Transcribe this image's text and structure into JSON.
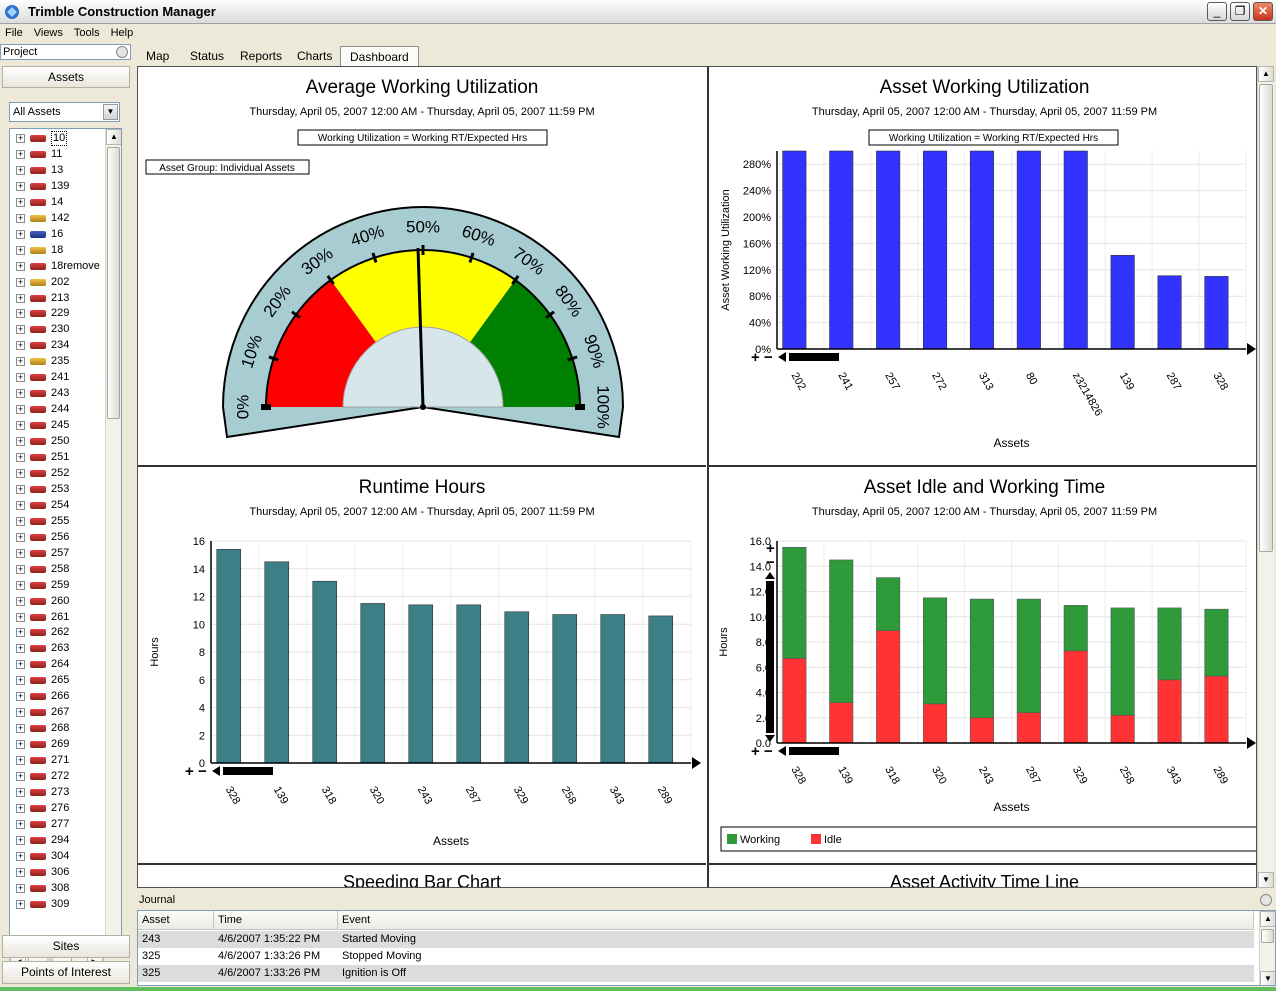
{
  "window": {
    "title": "Trimble Construction Manager"
  },
  "menu": [
    "File",
    "Views",
    "Tools",
    "Help"
  ],
  "left": {
    "header": "Project",
    "assets_button": "Assets",
    "filter_value": "All Assets",
    "tree": [
      "10",
      "11",
      "13",
      "139",
      "14",
      "142",
      "16",
      "18",
      "18remove",
      "202",
      "213",
      "229",
      "230",
      "234",
      "235",
      "241",
      "243",
      "244",
      "245",
      "250",
      "251",
      "252",
      "253",
      "254",
      "255",
      "256",
      "257",
      "258",
      "259",
      "260",
      "261",
      "262",
      "263",
      "264",
      "265",
      "266",
      "267",
      "268",
      "269",
      "271",
      "272",
      "273",
      "276",
      "277",
      "294",
      "304",
      "306",
      "308",
      "309"
    ],
    "sites_button": "Sites",
    "poi_button": "Points of Interest"
  },
  "tabs": [
    "Map",
    "Status",
    "Reports",
    "Charts",
    "Dashboard"
  ],
  "active_tab": "Dashboard",
  "dashboard": {
    "gauge": {
      "title": "Average Working Utilization",
      "date_range": "Thursday, April 05, 2007 12:00 AM - Thursday, April 05, 2007 11:59 PM",
      "formula": "Working Utilization = Working RT/Expected Hrs",
      "group": "Asset Group: Individual Assets",
      "tick_labels": [
        "0%",
        "10%",
        "20%",
        "30%",
        "40%",
        "50%",
        "60%",
        "70%",
        "80%",
        "90%",
        "100%"
      ],
      "needle_value": 49,
      "zones": [
        {
          "from": 0,
          "to": 30,
          "color": "#ff0000"
        },
        {
          "from": 30,
          "to": 70,
          "color": "#ffff00"
        },
        {
          "from": 70,
          "to": 100,
          "color": "#008000"
        }
      ],
      "face_color": "#a7cdd3"
    },
    "utilization": {
      "title": "Asset Working Utilization",
      "date_range": "Thursday, April 05, 2007 12:00 AM - Thursday, April 05, 2007 11:59 PM",
      "formula": "Working Utilization = Working RT/Expected Hrs",
      "xlabel": "Assets",
      "ylabel": "Asset Working Utilization",
      "bar_color": "#3333ff"
    },
    "runtime": {
      "title": "Runtime Hours",
      "date_range": "Thursday, April 05, 2007 12:00 AM - Thursday, April 05, 2007 11:59 PM",
      "xlabel": "Assets",
      "ylabel": "Hours",
      "bar_color": "#3d7f86"
    },
    "idle": {
      "title": "Asset Idle and Working Time",
      "date_range": "Thursday, April 05, 2007 12:00 AM - Thursday, April 05, 2007 11:59 PM",
      "xlabel": "Assets",
      "ylabel": "Hours",
      "legend": [
        "Working",
        "Idle"
      ],
      "working_color": "#2e9a3a",
      "idle_color": "#ff3333"
    },
    "speeding_title": "Speeding Bar Chart",
    "timeline_title": "Asset Activity Time Line"
  },
  "chart_data": [
    {
      "type": "bar",
      "title": "Asset Working Utilization",
      "xlabel": "Assets",
      "ylabel": "Asset Working Utilization",
      "categories": [
        "202",
        "241",
        "257",
        "272",
        "313",
        "80",
        "z3214826",
        "139",
        "287",
        "328"
      ],
      "values": [
        300,
        300,
        300,
        300,
        300,
        300,
        300,
        142,
        111,
        110
      ],
      "ylim": [
        0,
        300
      ],
      "yticks": [
        "0%",
        "40%",
        "80%",
        "120%",
        "160%",
        "200%",
        "240%",
        "280%"
      ],
      "grid": true
    },
    {
      "type": "bar",
      "title": "Runtime Hours",
      "xlabel": "Assets",
      "ylabel": "Hours",
      "categories": [
        "328",
        "139",
        "318",
        "320",
        "243",
        "287",
        "329",
        "258",
        "343",
        "289"
      ],
      "values": [
        15.4,
        14.5,
        13.1,
        11.5,
        11.4,
        11.4,
        10.9,
        10.7,
        10.7,
        10.6
      ],
      "ylim": [
        0,
        16
      ],
      "yticks": [
        "0",
        "2",
        "4",
        "6",
        "8",
        "10",
        "12",
        "14",
        "16"
      ],
      "grid": true
    },
    {
      "type": "bar",
      "stacked": true,
      "title": "Asset Idle and Working Time",
      "xlabel": "Assets",
      "ylabel": "Hours",
      "categories": [
        "328",
        "139",
        "318",
        "320",
        "243",
        "287",
        "329",
        "258",
        "343",
        "289"
      ],
      "series": [
        {
          "name": "Idle",
          "values": [
            6.7,
            3.2,
            8.9,
            3.1,
            2.0,
            2.4,
            7.3,
            2.2,
            5.0,
            5.3
          ]
        },
        {
          "name": "Working",
          "values": [
            8.8,
            11.3,
            4.2,
            8.4,
            9.4,
            9.0,
            3.6,
            8.5,
            5.7,
            5.3
          ]
        }
      ],
      "ylim": [
        0,
        16
      ],
      "yticks": [
        "0.0",
        "2.0",
        "4.0",
        "6.0",
        "8.0",
        "10.0",
        "12.0",
        "14.0",
        "16.0"
      ],
      "legend": "bottom",
      "grid": true
    }
  ],
  "journal": {
    "title": "Journal",
    "columns": [
      "Asset",
      "Time",
      "Event"
    ],
    "rows": [
      [
        "243",
        "4/6/2007 1:35:22 PM",
        "Started Moving"
      ],
      [
        "325",
        "4/6/2007 1:33:26 PM",
        "Stopped Moving"
      ],
      [
        "325",
        "4/6/2007 1:33:26 PM",
        "Ignition is Off"
      ]
    ]
  }
}
